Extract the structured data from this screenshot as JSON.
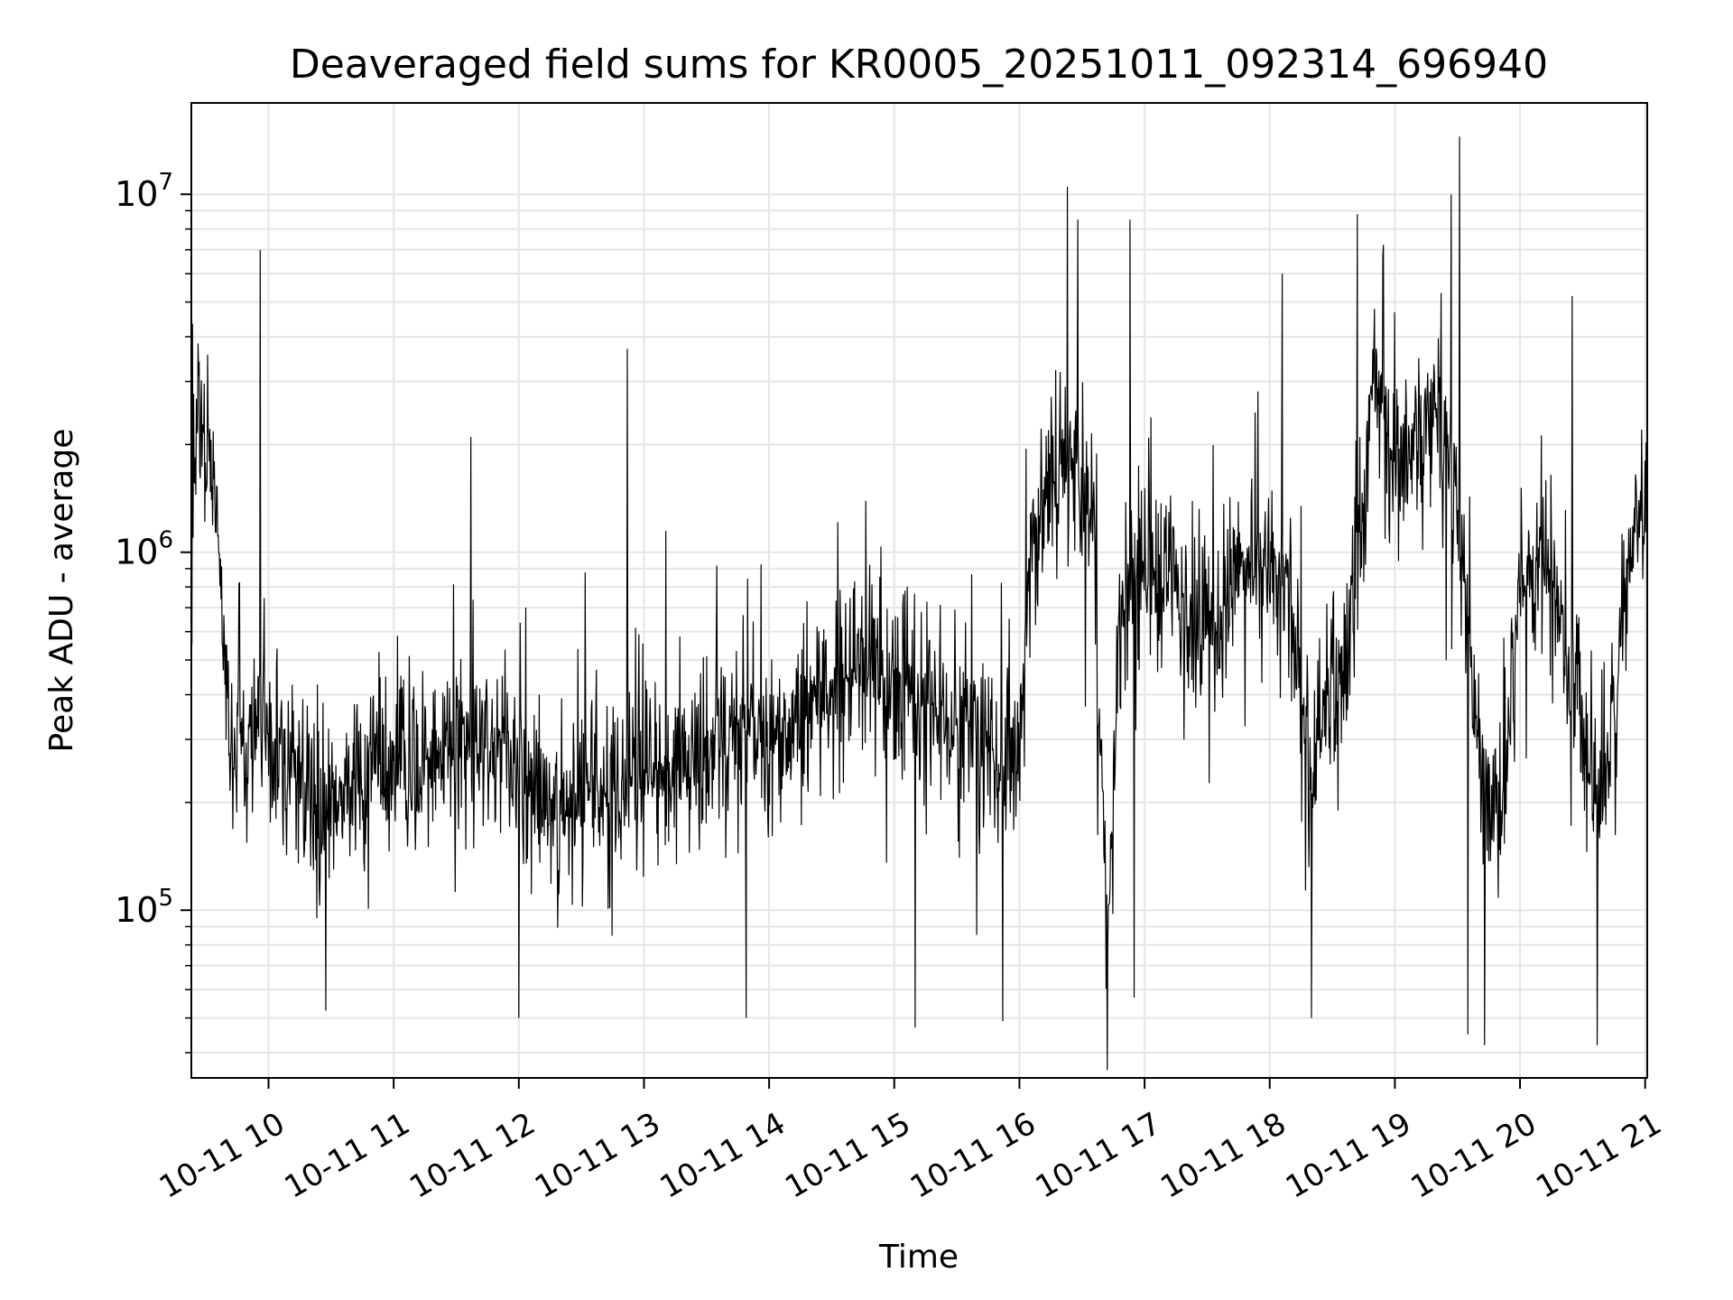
{
  "chart_data": {
    "type": "line",
    "title": "Deaveraged field sums for KR0005_20251011_092314_696940",
    "xlabel": "Time",
    "ylabel": "Peak ADU - average",
    "yscale": "log",
    "ylim": [
      34000,
      18000000
    ],
    "xlim": [
      "2025-10-11 09:23",
      "2025-10-11 21:01"
    ],
    "grid": true,
    "line_color": "#000000",
    "grid_color": "#e5e5e5",
    "x_ticks": [
      {
        "value": "2025-10-11 10:00",
        "label": "10-11 10"
      },
      {
        "value": "2025-10-11 11:00",
        "label": "10-11 11"
      },
      {
        "value": "2025-10-11 12:00",
        "label": "10-11 12"
      },
      {
        "value": "2025-10-11 13:00",
        "label": "10-11 13"
      },
      {
        "value": "2025-10-11 14:00",
        "label": "10-11 14"
      },
      {
        "value": "2025-10-11 15:00",
        "label": "10-11 15"
      },
      {
        "value": "2025-10-11 16:00",
        "label": "10-11 16"
      },
      {
        "value": "2025-10-11 17:00",
        "label": "10-11 17"
      },
      {
        "value": "2025-10-11 18:00",
        "label": "10-11 18"
      },
      {
        "value": "2025-10-11 19:00",
        "label": "10-11 19"
      },
      {
        "value": "2025-10-11 20:00",
        "label": "10-11 20"
      },
      {
        "value": "2025-10-11 21:00",
        "label": "10-11 21"
      }
    ],
    "y_ticks": [
      {
        "value": 100000,
        "mantissa": "10",
        "exponent": "5"
      },
      {
        "value": 1000000,
        "mantissa": "10",
        "exponent": "6"
      },
      {
        "value": 10000000,
        "mantissa": "10",
        "exponent": "7"
      }
    ],
    "series": [
      {
        "x": [
          "2025-10-11 09:23",
          "2025-10-11 09:27",
          "2025-10-11 09:31",
          "2025-10-11 09:35",
          "2025-10-11 09:40",
          "2025-10-11 09:45",
          "2025-10-11 09:50",
          "2025-10-11 09:55",
          "2025-10-11 10:00",
          "2025-10-11 10:10",
          "2025-10-11 10:20",
          "2025-10-11 10:30",
          "2025-10-11 10:40",
          "2025-10-11 10:50",
          "2025-10-11 11:00",
          "2025-10-11 11:10",
          "2025-10-11 11:20",
          "2025-10-11 11:30",
          "2025-10-11 11:40",
          "2025-10-11 11:50",
          "2025-10-11 12:00",
          "2025-10-11 12:10",
          "2025-10-11 12:20",
          "2025-10-11 12:30",
          "2025-10-11 12:40",
          "2025-10-11 12:50",
          "2025-10-11 13:00",
          "2025-10-11 13:10",
          "2025-10-11 13:20",
          "2025-10-11 13:30",
          "2025-10-11 13:40",
          "2025-10-11 13:50",
          "2025-10-11 14:00",
          "2025-10-11 14:10",
          "2025-10-11 14:20",
          "2025-10-11 14:30",
          "2025-10-11 14:40",
          "2025-10-11 14:50",
          "2025-10-11 15:00",
          "2025-10-11 15:10",
          "2025-10-11 15:20",
          "2025-10-11 15:30",
          "2025-10-11 15:40",
          "2025-10-11 15:50",
          "2025-10-11 16:00",
          "2025-10-11 16:05",
          "2025-10-11 16:15",
          "2025-10-11 16:25",
          "2025-10-11 16:35",
          "2025-10-11 16:42",
          "2025-10-11 16:50",
          "2025-10-11 17:00",
          "2025-10-11 17:10",
          "2025-10-11 17:20",
          "2025-10-11 17:30",
          "2025-10-11 17:40",
          "2025-10-11 17:50",
          "2025-10-11 18:00",
          "2025-10-11 18:10",
          "2025-10-11 18:20",
          "2025-10-11 18:30",
          "2025-10-11 18:40",
          "2025-10-11 18:50",
          "2025-10-11 19:00",
          "2025-10-11 19:10",
          "2025-10-11 19:20",
          "2025-10-11 19:30",
          "2025-10-11 19:40",
          "2025-10-11 19:50",
          "2025-10-11 20:00",
          "2025-10-11 20:10",
          "2025-10-11 20:20",
          "2025-10-11 20:30",
          "2025-10-11 20:40",
          "2025-10-11 20:50",
          "2025-10-11 21:00"
        ],
        "y": [
          1200000,
          2500000,
          1800000,
          1500000,
          350000,
          300000,
          280000,
          320000,
          300000,
          250000,
          200000,
          210000,
          220000,
          230000,
          250000,
          240000,
          260000,
          280000,
          300000,
          320000,
          260000,
          220000,
          200000,
          210000,
          220000,
          230000,
          240000,
          250000,
          260000,
          280000,
          300000,
          320000,
          280000,
          300000,
          350000,
          400000,
          450000,
          500000,
          450000,
          400000,
          380000,
          350000,
          300000,
          280000,
          260000,
          900000,
          1500000,
          2000000,
          1200000,
          90000,
          800000,
          1000000,
          900000,
          700000,
          600000,
          800000,
          900000,
          1000000,
          700000,
          250000,
          400000,
          600000,
          3000000,
          1800000,
          2000000,
          2200000,
          1500000,
          300000,
          150000,
          800000,
          900000,
          700000,
          300000,
          200000,
          700000,
          1500000
        ],
        "peaks": [
          {
            "x": "2025-10-11 09:56",
            "y": 7000000
          },
          {
            "x": "2025-10-11 11:37",
            "y": 2100000
          },
          {
            "x": "2025-10-11 12:52",
            "y": 3700000
          },
          {
            "x": "2025-10-11 16:23",
            "y": 10500000
          },
          {
            "x": "2025-10-11 16:28",
            "y": 8500000
          },
          {
            "x": "2025-10-11 16:53",
            "y": 8500000
          },
          {
            "x": "2025-10-11 18:06",
            "y": 6000000
          },
          {
            "x": "2025-10-11 18:42",
            "y": 8800000
          },
          {
            "x": "2025-10-11 19:27",
            "y": 10000000
          },
          {
            "x": "2025-10-11 19:31",
            "y": 14500000
          },
          {
            "x": "2025-10-11 20:25",
            "y": 5200000
          }
        ],
        "troughs": [
          {
            "x": "2025-10-11 12:00",
            "y": 50000
          },
          {
            "x": "2025-10-11 13:49",
            "y": 50000
          },
          {
            "x": "2025-10-11 15:10",
            "y": 47000
          },
          {
            "x": "2025-10-11 15:52",
            "y": 49000
          },
          {
            "x": "2025-10-11 16:55",
            "y": 57000
          },
          {
            "x": "2025-10-11 18:20",
            "y": 50000
          },
          {
            "x": "2025-10-11 19:35",
            "y": 45000
          },
          {
            "x": "2025-10-11 19:43",
            "y": 42000
          },
          {
            "x": "2025-10-11 20:37",
            "y": 42000
          }
        ]
      }
    ]
  }
}
